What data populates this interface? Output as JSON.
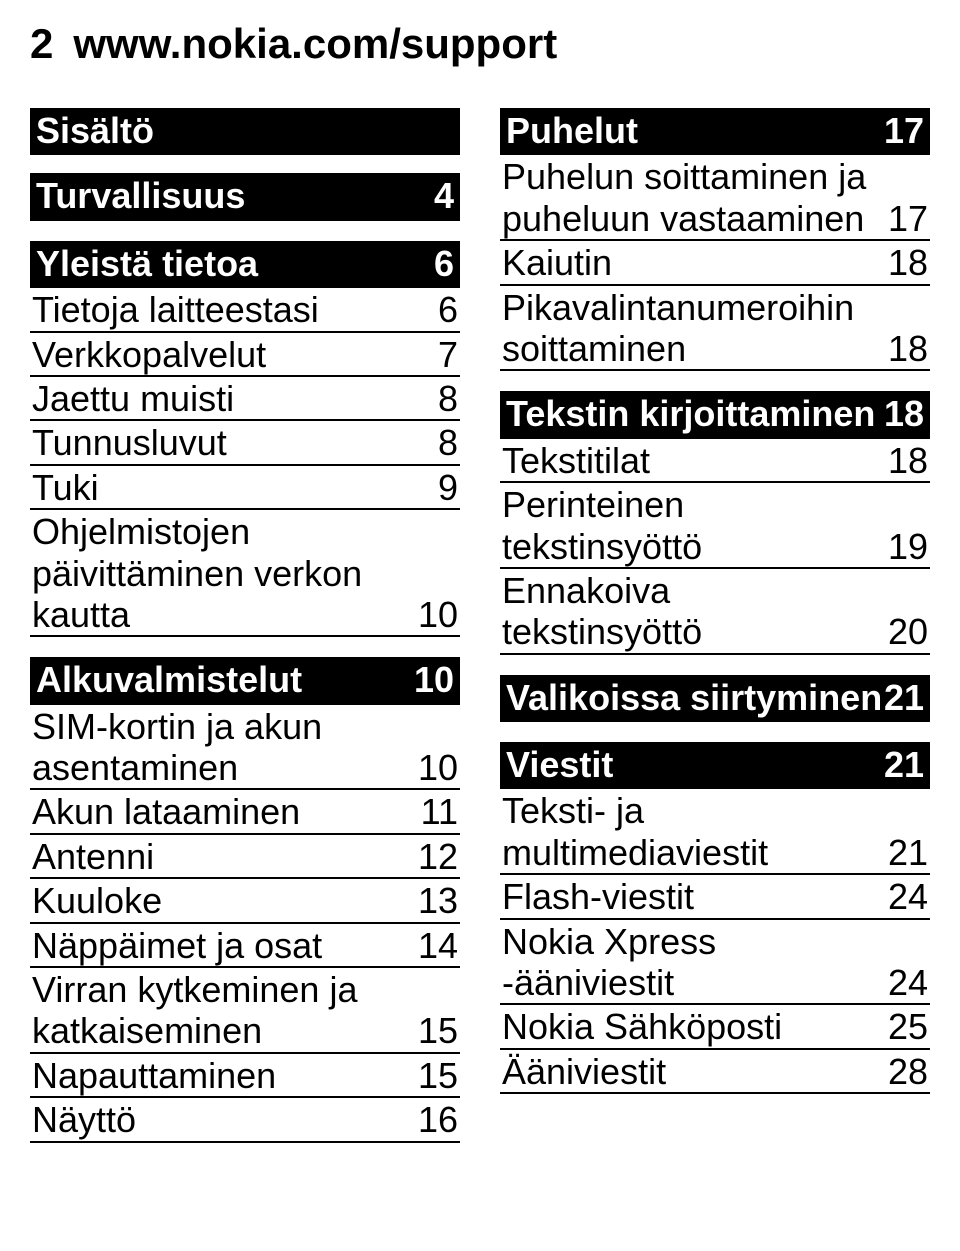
{
  "header": {
    "page_number": "2",
    "url": "www.nokia.com/support"
  },
  "left": {
    "title": "Sisältö",
    "sections": [
      {
        "type": "header",
        "label": "Turvallisuus",
        "page": "4"
      },
      {
        "type": "header",
        "label": "Yleistä tietoa",
        "page": "6"
      },
      {
        "type": "row",
        "label": "Tietoja laitteestasi",
        "page": "6"
      },
      {
        "type": "row",
        "label": "Verkkopalvelut",
        "page": "7"
      },
      {
        "type": "row",
        "label": "Jaettu muisti",
        "page": "8"
      },
      {
        "type": "row",
        "label": "Tunnusluvut",
        "page": "8"
      },
      {
        "type": "row",
        "label": "Tuki",
        "page": "9"
      },
      {
        "type": "row",
        "label": "Ohjelmistojen päivittäminen verkon kautta",
        "page": "10"
      },
      {
        "type": "header",
        "label": "Alkuvalmistelut",
        "page": "10"
      },
      {
        "type": "row",
        "label": "SIM-kortin ja akun asentaminen",
        "page": "10"
      },
      {
        "type": "row",
        "label": "Akun lataaminen",
        "page": "11"
      },
      {
        "type": "row",
        "label": "Antenni",
        "page": "12"
      },
      {
        "type": "row",
        "label": "Kuuloke",
        "page": "13"
      },
      {
        "type": "row",
        "label": "Näppäimet ja osat",
        "page": "14"
      },
      {
        "type": "row",
        "label": "Virran kytkeminen ja katkaiseminen",
        "page": "15"
      },
      {
        "type": "row",
        "label": "Napauttaminen",
        "page": "15"
      },
      {
        "type": "row",
        "label": "Näyttö",
        "page": "16"
      }
    ]
  },
  "right": {
    "sections": [
      {
        "type": "header",
        "label": "Puhelut",
        "page": "17"
      },
      {
        "type": "row",
        "label": "Puhelun soittaminen ja puheluun vastaaminen",
        "page": "17"
      },
      {
        "type": "row",
        "label": "Kaiutin",
        "page": "18"
      },
      {
        "type": "row",
        "label": "Pikavalintanumeroihin soittaminen",
        "page": "18"
      },
      {
        "type": "header",
        "label": "Tekstin kirjoittaminen",
        "page": "18"
      },
      {
        "type": "row",
        "label": "Tekstitilat",
        "page": "18"
      },
      {
        "type": "row",
        "label": "Perinteinen tekstinsyöttö",
        "page": "19"
      },
      {
        "type": "row",
        "label": "Ennakoiva tekstinsyöttö",
        "page": "20"
      },
      {
        "type": "header",
        "label": "Valikoissa siirtyminen",
        "page": "21"
      },
      {
        "type": "header",
        "label": "Viestit",
        "page": "21"
      },
      {
        "type": "row",
        "label": "Teksti- ja multimediaviestit",
        "page": "21"
      },
      {
        "type": "row",
        "label": "Flash-viestit",
        "page": "24"
      },
      {
        "type": "row",
        "label": "Nokia Xpress -ääniviestit",
        "page": "24"
      },
      {
        "type": "row",
        "label": "Nokia Sähköposti",
        "page": "25"
      },
      {
        "type": "row",
        "label": "Ääniviestit",
        "page": "28"
      }
    ]
  },
  "colors": {
    "text": "#000000",
    "background": "#ffffff",
    "header_bg": "#000000",
    "header_text": "#ffffff",
    "rule": "#000000"
  },
  "typography": {
    "base_font": "Arial, Helvetica, sans-serif",
    "header_size_pt": 32,
    "body_size_pt": 27
  }
}
